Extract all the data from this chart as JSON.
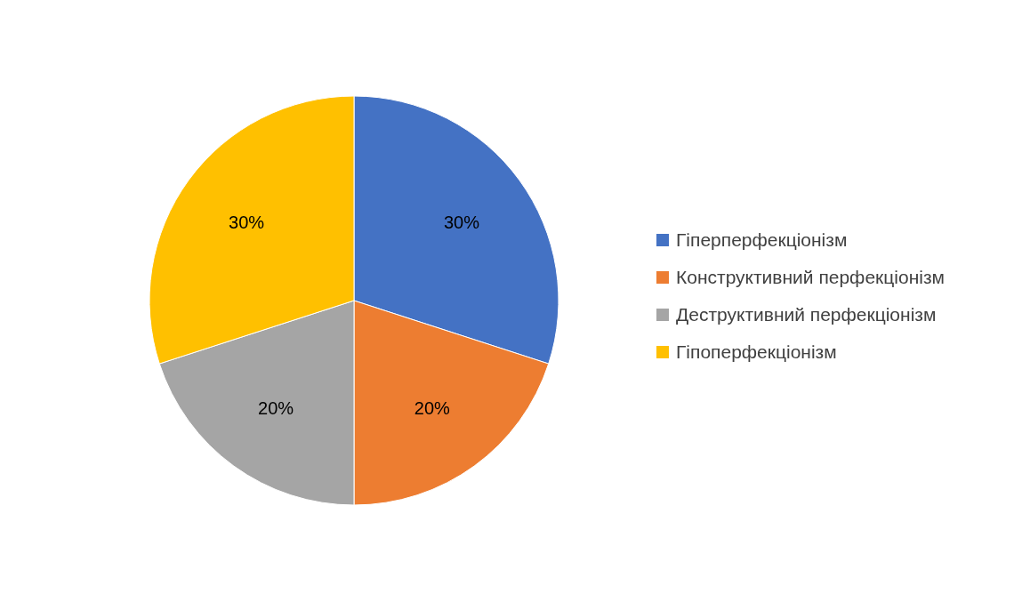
{
  "chart_data": {
    "type": "pie",
    "categories": [
      "Гіперперфекціонізм",
      "Конструктивний перфекціонізм",
      "Деструктивний перфекціонізм",
      "Гіпоперфекціонізм"
    ],
    "values": [
      30,
      20,
      20,
      30
    ],
    "colors": [
      "#4472c4",
      "#ed7d31",
      "#a5a5a5",
      "#ffc000"
    ],
    "value_labels": [
      "30%",
      "20%",
      "20%",
      "30%"
    ],
    "legend": "right"
  }
}
